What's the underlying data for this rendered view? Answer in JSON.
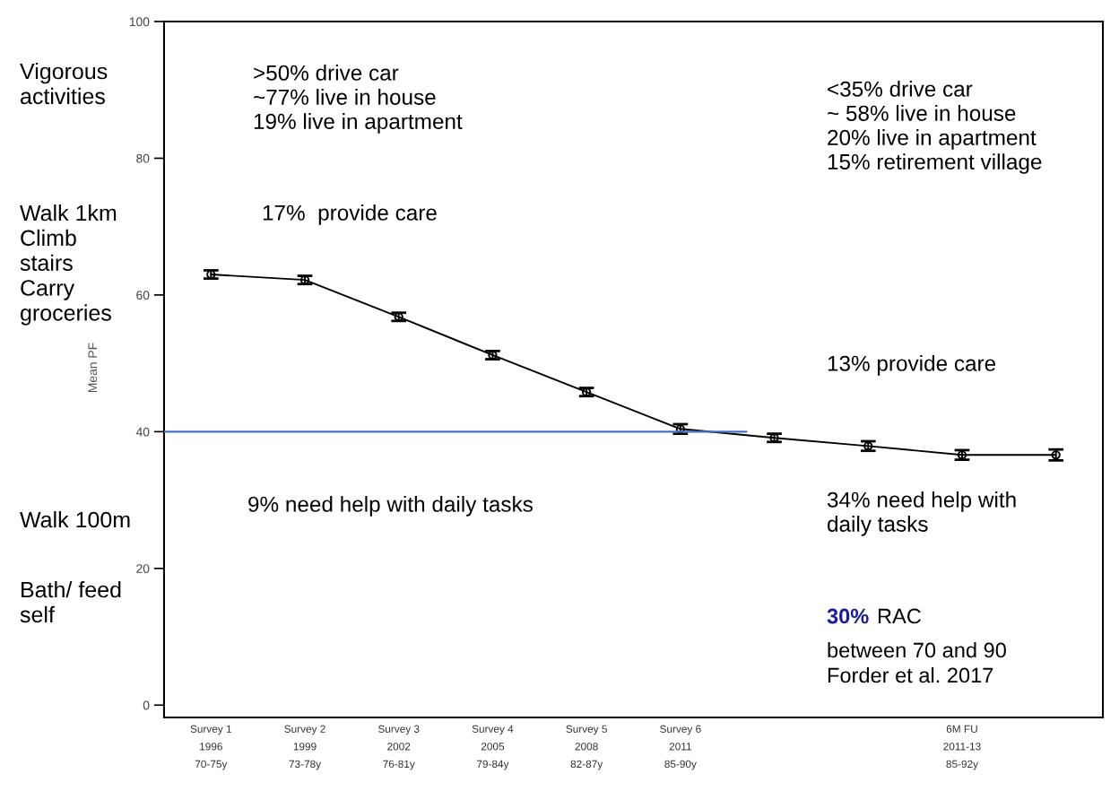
{
  "chart_data": {
    "type": "line",
    "categories": [
      "Survey 1\n1996\n70-75y",
      "Survey 2\n1999\n73-78y",
      "Survey 3\n2002\n76-81y",
      "Survey 4\n2005\n79-84y",
      "Survey 5\n2008\n82-87y",
      "Survey 6\n2011\n85-90y",
      null,
      null,
      "6M FU\n2011-13\n85-92y",
      null
    ],
    "ylim": [
      -1.8,
      100
    ],
    "yticks": [
      0,
      20,
      40,
      60,
      80,
      100
    ],
    "marker": "circle",
    "line_style": "solid",
    "series": [
      {
        "color": "#000000",
        "values": [
          63.0,
          62.2,
          56.8,
          51.2,
          45.8,
          40.4,
          39.1,
          37.9,
          36.6,
          36.6
        ],
        "errors": [
          0.6,
          0.6,
          0.6,
          0.6,
          0.6,
          0.7,
          0.6,
          0.7,
          0.7,
          0.8
        ]
      }
    ],
    "ref_lines": [
      {
        "axis": "y",
        "value": 40,
        "color": "#4472c4"
      }
    ],
    "annotations": [
      "Vigorous\nactivities",
      "Walk 1km\nClimb\nstairs\nCarry\ngroceries",
      "Walk 100m",
      "Bath/ feed\nself",
      ">50% drive car\n~77% live in house\n19% live in apartment",
      "17%  provide care",
      "9% need help with daily tasks",
      "<35% drive car\n~ 58% live in house\n20% live in apartment\n15% retirement village",
      "13% provide care",
      "34% need help with\ndaily tasks",
      "30%",
      "RAC",
      "between 70 and 90\nForder et al. 2017",
      "Mean PF"
    ]
  }
}
